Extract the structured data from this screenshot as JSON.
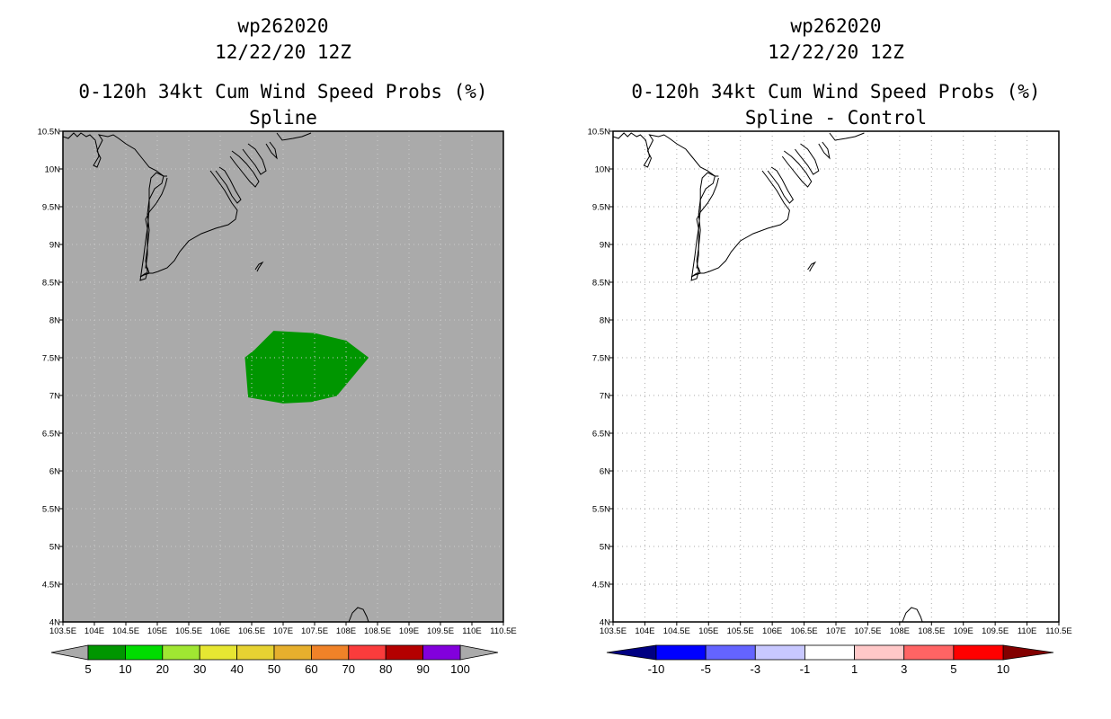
{
  "lat_labels": [
    "10.5N",
    "10N",
    "9.5N",
    "9N",
    "8.5N",
    "8N",
    "7.5N",
    "7N",
    "6.5N",
    "6N",
    "5.5N",
    "5N",
    "4.5N",
    "4N"
  ],
  "lon_labels": [
    "103.5E",
    "104E",
    "104.5E",
    "105E",
    "105.5E",
    "106E",
    "106.5E",
    "107E",
    "107.5E",
    "108E",
    "108.5E",
    "109E",
    "109.5E",
    "110E",
    "110.5E"
  ],
  "panels": [
    {
      "title_line1": "wp262020",
      "title_line2": "12/22/20 12Z",
      "title_line3": "0-120h 34kt Cum Wind Speed Probs (%)",
      "title_line4": "Spline",
      "background": "#aaaaaa",
      "grid_color": "#cccccc",
      "colorbar": {
        "labels": [
          "5",
          "10",
          "20",
          "30",
          "40",
          "50",
          "60",
          "70",
          "80",
          "90",
          "100"
        ],
        "colors": [
          "#009600",
          "#00dc00",
          "#a0e632",
          "#e6e632",
          "#e6d232",
          "#e6af2d",
          "#f08228",
          "#fa3c3c",
          "#b40000",
          "#8200dc"
        ],
        "under_color": "#aaaaaa",
        "over_color": "#aaaaaa"
      }
    },
    {
      "title_line1": "wp262020",
      "title_line2": "12/22/20 12Z",
      "title_line3": "0-120h 34kt Cum Wind Speed Probs (%)",
      "title_line4": "Spline - Control",
      "background": "#ffffff",
      "grid_color": "#aaaaaa",
      "colorbar": {
        "labels": [
          "-10",
          "-5",
          "-3",
          "-1",
          "1",
          "3",
          "5",
          "10"
        ],
        "colors": [
          "#0000ff",
          "#6464ff",
          "#c8c8ff",
          "#ffffff",
          "#ffc8c8",
          "#ff6464",
          "#ff0000"
        ],
        "under_color": "#000082",
        "over_color": "#820000"
      }
    }
  ],
  "chart_data": [
    {
      "type": "heatmap",
      "variable": "0-120h 34kt Cum Wind Speed Probs (%)",
      "lon_range": [
        103.5,
        110.5
      ],
      "lat_range": [
        4,
        10.5
      ],
      "grid": true,
      "contour_regions": [
        {
          "value_range": [
            5,
            10
          ],
          "color": "#009600",
          "polygon_lonlat": [
            [
              106.85,
              7.85
            ],
            [
              107.5,
              7.82
            ],
            [
              108.0,
              7.72
            ],
            [
              108.35,
              7.5
            ],
            [
              107.85,
              7.0
            ],
            [
              107.45,
              6.92
            ],
            [
              107.0,
              6.9
            ],
            [
              106.45,
              6.98
            ],
            [
              106.4,
              7.5
            ],
            [
              106.55,
              7.6
            ]
          ]
        }
      ]
    },
    {
      "type": "heatmap",
      "variable": "Spline - Control",
      "lon_range": [
        103.5,
        110.5
      ],
      "lat_range": [
        4,
        10.5
      ],
      "grid": true,
      "contour_regions": []
    }
  ]
}
